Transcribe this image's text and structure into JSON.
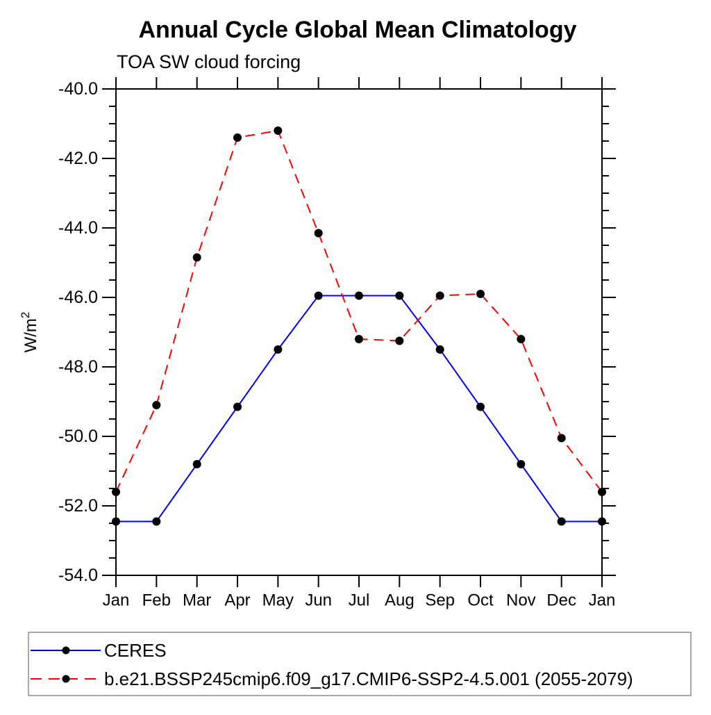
{
  "title": "Annual Cycle Global Mean Climatology",
  "subtitle": "TOA SW cloud forcing",
  "chart_data": {
    "type": "line",
    "categories": [
      "Jan",
      "Feb",
      "Mar",
      "Apr",
      "May",
      "Jun",
      "Jul",
      "Aug",
      "Sep",
      "Oct",
      "Nov",
      "Dec",
      "Jan"
    ],
    "series": [
      {
        "name": "CERES",
        "color": "#0000ff",
        "line_style": "solid",
        "marker": "filled-circle",
        "marker_color": "#000000",
        "values": [
          -52.45,
          -52.45,
          -50.8,
          -49.15,
          -47.5,
          -45.95,
          -45.95,
          -45.95,
          -47.5,
          -49.15,
          -50.8,
          -52.45,
          -52.45
        ]
      },
      {
        "name": "b.e21.BSSP245cmip6.f09_g17.CMIP6-SSP2-4.5.001 (2055-2079)",
        "color": "#ff0000",
        "line_style": "dashed",
        "marker": "filled-circle",
        "marker_color": "#000000",
        "values": [
          -51.6,
          -49.1,
          -44.85,
          -41.4,
          -41.2,
          -44.15,
          -47.2,
          -47.25,
          -45.95,
          -45.9,
          -47.2,
          -50.05,
          -51.6
        ]
      }
    ],
    "ylabel_base": "W/m",
    "ylabel_sup": "2",
    "ylim": [
      -54.0,
      -40.0
    ],
    "ytick_major_step": 2.0,
    "ytick_minor_step": 0.5,
    "ytick_labels": [
      "-40.0",
      "-42.0",
      "-44.0",
      "-46.0",
      "-48.0",
      "-50.0",
      "-52.0",
      "-54.0"
    ],
    "grid": "off",
    "legend_position": "bottom",
    "axis_color": "#000000",
    "legend_border_color": "#8c8c8c"
  }
}
